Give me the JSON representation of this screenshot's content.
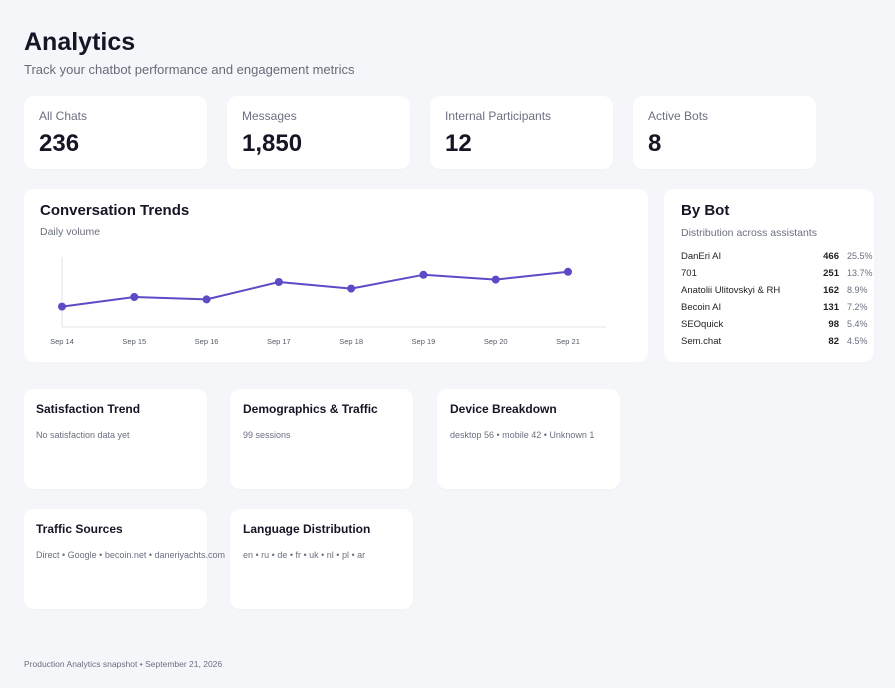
{
  "header": {
    "title": "Analytics",
    "subtitle": "Track your chatbot performance and engagement metrics"
  },
  "stats": [
    {
      "label": "All Chats",
      "value": "236"
    },
    {
      "label": "Messages",
      "value": "1,850"
    },
    {
      "label": "Internal Participants",
      "value": "12"
    },
    {
      "label": "Active Bots",
      "value": "8"
    }
  ],
  "trends": {
    "title": "Conversation Trends",
    "subtitle": "Daily volume",
    "line_color": "#5b4bc4"
  },
  "chart_data": {
    "type": "line",
    "title": "Conversation Trends",
    "subtitle": "Daily volume",
    "categories": [
      "Sep 14",
      "Sep 15",
      "Sep 16",
      "Sep 17",
      "Sep 18",
      "Sep 19",
      "Sep 20",
      "Sep 21"
    ],
    "series": [
      {
        "values": [
          14,
          30,
          26,
          55,
          44,
          67,
          59,
          72
        ]
      }
    ],
    "ylim": [
      0,
      90
    ],
    "grid": false,
    "xlabel": "",
    "ylabel": ""
  },
  "by_bot": {
    "title": "By Bot",
    "subtitle": "Distribution across assistants",
    "rows": [
      {
        "name": "DanEri AI",
        "count": "466",
        "pct": "25.5%"
      },
      {
        "name": "701",
        "count": "251",
        "pct": "13.7%"
      },
      {
        "name": "Anatolii Ulitovskyi & RH",
        "count": "162",
        "pct": "8.9%"
      },
      {
        "name": "Becoin AI",
        "count": "131",
        "pct": "7.2%"
      },
      {
        "name": "SEOquick",
        "count": "98",
        "pct": "5.4%"
      },
      {
        "name": "Sem.chat",
        "count": "82",
        "pct": "4.5%"
      }
    ]
  },
  "panels": {
    "satisfaction": {
      "title": "Satisfaction Trend",
      "text": "No satisfaction data yet"
    },
    "demographics": {
      "title": "Demographics & Traffic",
      "text": "99 sessions"
    },
    "device": {
      "title": "Device Breakdown",
      "text": "desktop 56 • mobile 42 • Unknown 1"
    },
    "traffic": {
      "title": "Traffic Sources",
      "text": "Direct • Google • becoin.net • daneriyachts.com"
    },
    "language": {
      "title": "Language Distribution",
      "text": "en • ru • de • fr • uk • nl • pl • ar"
    }
  },
  "footer": {
    "text": "Production Analytics snapshot • September 21, 2026"
  }
}
